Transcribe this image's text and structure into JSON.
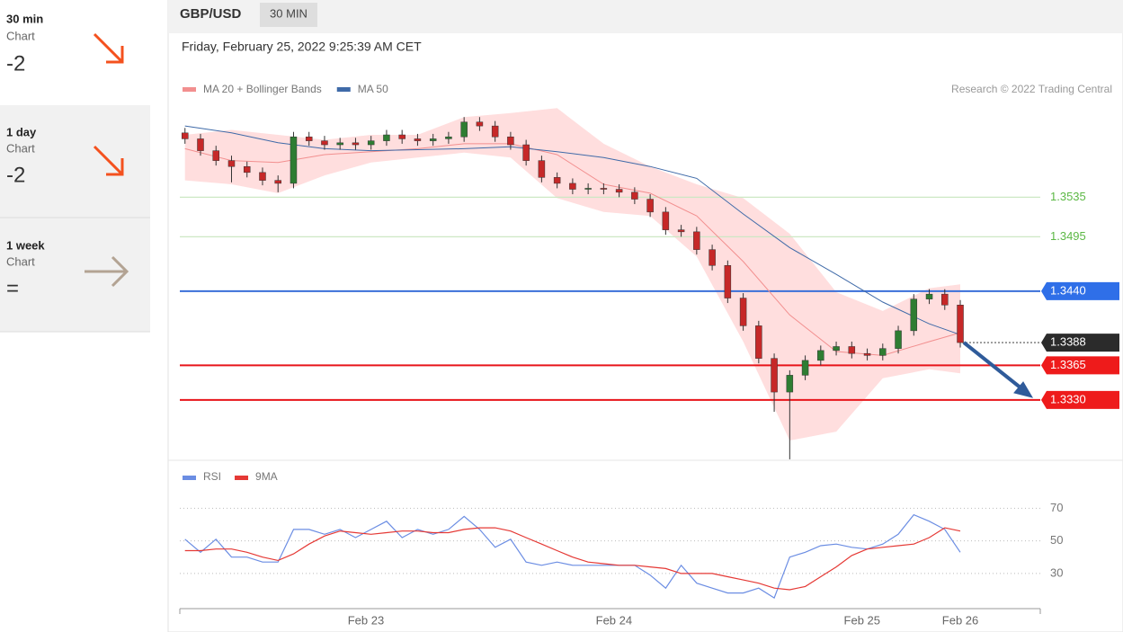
{
  "header": {
    "symbol": "GBP/USD",
    "timeframe": "30 MIN",
    "timestamp": "Friday, February 25, 2022 9:25:39 AM CET"
  },
  "sidebar": [
    {
      "period": "30 min",
      "label": "Chart",
      "score": "-2"
    },
    {
      "period": "1 day",
      "label": "Chart",
      "score": "-2"
    },
    {
      "period": "1 week",
      "label": "Chart",
      "score": "="
    }
  ],
  "chart_data": [
    {
      "type": "candlestick",
      "credit": "Research © 2022 Trading Central",
      "xlim": [
        -18,
        65.5
      ],
      "ylim": [
        1.3269,
        1.3698
      ],
      "up_color": "#2e7d32",
      "down_color": "#c62828",
      "x": [
        -17.5,
        -16,
        -14.5,
        -13,
        -11.5,
        -10,
        -8.5,
        -7,
        -5.5,
        -4,
        -2.5,
        -1,
        0.5,
        2,
        3.5,
        5,
        6.5,
        8,
        9.5,
        11,
        12.5,
        14,
        15.5,
        17,
        18.5,
        20,
        21.5,
        23,
        24.5,
        26,
        27.5,
        29,
        30.5,
        32,
        33.5,
        35,
        36.5,
        38,
        39.5,
        41,
        42.5,
        44,
        45.5,
        47,
        48.5,
        50,
        51.5,
        53,
        54.5,
        56,
        57.5
      ],
      "open": [
        1.36,
        1.3594,
        1.3582,
        1.3572,
        1.3566,
        1.356,
        1.3552,
        1.3549,
        1.3596,
        1.3592,
        1.3588,
        1.359,
        1.3588,
        1.3592,
        1.3598,
        1.3594,
        1.3592,
        1.3594,
        1.3596,
        1.3611,
        1.3607,
        1.3596,
        1.3588,
        1.3572,
        1.3555,
        1.3549,
        1.3543,
        1.3544,
        1.3543,
        1.354,
        1.3533,
        1.352,
        1.3502,
        1.35,
        1.3482,
        1.3466,
        1.3433,
        1.3405,
        1.3372,
        1.3338,
        1.3355,
        1.337,
        1.338,
        1.3384,
        1.3377,
        1.3375,
        1.3382,
        1.34,
        1.3432,
        1.3437,
        1.3426
      ],
      "high": [
        1.3605,
        1.3599,
        1.3587,
        1.3577,
        1.3571,
        1.3565,
        1.3557,
        1.3601,
        1.3601,
        1.3597,
        1.3595,
        1.3595,
        1.3597,
        1.3603,
        1.3603,
        1.3599,
        1.3599,
        1.3601,
        1.3616,
        1.3616,
        1.3612,
        1.3601,
        1.3593,
        1.3577,
        1.356,
        1.3554,
        1.3549,
        1.3549,
        1.3548,
        1.3545,
        1.3538,
        1.3525,
        1.3507,
        1.3505,
        1.3487,
        1.3471,
        1.3438,
        1.341,
        1.3377,
        1.336,
        1.3375,
        1.3385,
        1.3389,
        1.3389,
        1.3382,
        1.3387,
        1.3405,
        1.3437,
        1.3442,
        1.3442,
        1.3431
      ],
      "low": [
        1.3589,
        1.3577,
        1.3567,
        1.355,
        1.3555,
        1.3547,
        1.354,
        1.3544,
        1.3587,
        1.3583,
        1.3583,
        1.3583,
        1.3583,
        1.3587,
        1.3589,
        1.3587,
        1.3587,
        1.3589,
        1.3591,
        1.3602,
        1.3591,
        1.3583,
        1.3567,
        1.355,
        1.3544,
        1.3538,
        1.3538,
        1.3538,
        1.3535,
        1.3528,
        1.3515,
        1.3497,
        1.3495,
        1.3477,
        1.3461,
        1.3428,
        1.34,
        1.3367,
        1.3318,
        1.327,
        1.335,
        1.3365,
        1.3375,
        1.3372,
        1.337,
        1.337,
        1.3377,
        1.3395,
        1.3427,
        1.3421,
        1.3383
      ],
      "close": [
        1.3594,
        1.3582,
        1.3572,
        1.3566,
        1.356,
        1.3552,
        1.3549,
        1.3596,
        1.3592,
        1.3588,
        1.359,
        1.3588,
        1.3592,
        1.3598,
        1.3594,
        1.3592,
        1.3594,
        1.3596,
        1.3611,
        1.3607,
        1.3596,
        1.3588,
        1.3572,
        1.3555,
        1.3549,
        1.3543,
        1.3544,
        1.3543,
        1.354,
        1.3533,
        1.352,
        1.3502,
        1.35,
        1.3482,
        1.3466,
        1.3433,
        1.3405,
        1.3372,
        1.3338,
        1.3355,
        1.337,
        1.338,
        1.3384,
        1.3377,
        1.3375,
        1.3382,
        1.34,
        1.3432,
        1.3437,
        1.3426,
        1.3388
      ],
      "overlays": {
        "x": [
          -17.5,
          -13,
          -8.5,
          -4,
          0.5,
          5,
          9.5,
          14,
          18.5,
          23,
          27.5,
          32,
          36.5,
          41,
          45.5,
          50,
          54.5,
          57.5
        ],
        "series": [
          {
            "name": "MA 20 + Bollinger Bands",
            "color": "#f28f8f",
            "band_color": "#ffd0d0",
            "values": [
              1.3584,
              1.3572,
              1.357,
              1.3578,
              1.3581,
              1.3584,
              1.3589,
              1.3589,
              1.3578,
              1.3548,
              1.3539,
              1.3516,
              1.347,
              1.3416,
              1.3379,
              1.3375,
              1.3389,
              1.3398
            ],
            "upper": [
              1.3598,
              1.3603,
              1.3598,
              1.3593,
              1.3598,
              1.3598,
              1.3616,
              1.362,
              1.3625,
              1.3589,
              1.3566,
              1.3548,
              1.3534,
              1.3498,
              1.3439,
              1.342,
              1.3443,
              1.3447
            ],
            "lower": [
              1.3552,
              1.3548,
              1.3539,
              1.3557,
              1.357,
              1.3575,
              1.358,
              1.3575,
              1.3534,
              1.352,
              1.3516,
              1.3475,
              1.3389,
              1.3289,
              1.3298,
              1.3352,
              1.3361,
              1.3357
            ]
          },
          {
            "name": "MA 50",
            "color": "#3f6aa8",
            "values": [
              1.3607,
              1.36,
              1.359,
              1.3584,
              1.3582,
              1.3583,
              1.3584,
              1.3586,
              1.3581,
              1.3575,
              1.3566,
              1.3554,
              1.3518,
              1.3484,
              1.3457,
              1.3429,
              1.3407,
              1.3396
            ]
          }
        ]
      },
      "levels": [
        {
          "value": 1.3535,
          "label": "1.3535",
          "color": "#5cb845",
          "line_color": "#cde8c4",
          "box": false,
          "dotted": false
        },
        {
          "value": 1.3495,
          "label": "1.3495",
          "color": "#5cb845",
          "line_color": "#cde8c4",
          "box": false,
          "dotted": false
        },
        {
          "value": 1.344,
          "label": "1.3440",
          "color": "#2f6fe8",
          "line_color": "#3a6fd8",
          "box": true,
          "dotted": false
        },
        {
          "value": 1.3388,
          "label": "1.3388",
          "color": "#2b2b2b",
          "line_color": "#555555",
          "box": true,
          "dotted": true
        },
        {
          "value": 1.3365,
          "label": "1.3365",
          "color": "#ee1b1b",
          "line_color": "#e8141a",
          "box": true,
          "dotted": false
        },
        {
          "value": 1.333,
          "label": "1.3330",
          "color": "#ee1b1b",
          "line_color": "#e8141a",
          "box": true,
          "dotted": false
        }
      ]
    },
    {
      "type": "line",
      "xlim": [
        -18,
        65.5
      ],
      "ylim": [
        4,
        95
      ],
      "xticks": [
        {
          "value": 0,
          "label": "Feb 23"
        },
        {
          "value": 24,
          "label": "Feb 24"
        },
        {
          "value": 48,
          "label": "Feb 25"
        },
        {
          "value": 57.5,
          "label": "Feb 26"
        }
      ],
      "yticks": [
        30,
        50,
        70
      ],
      "x": [
        -17.5,
        -16,
        -14.5,
        -13,
        -11.5,
        -10,
        -8.5,
        -7,
        -5.5,
        -4,
        -2.5,
        -1,
        0.5,
        2,
        3.5,
        5,
        6.5,
        8,
        9.5,
        11,
        12.5,
        14,
        15.5,
        17,
        18.5,
        20,
        21.5,
        23,
        24.5,
        26,
        27.5,
        29,
        30.5,
        32,
        33.5,
        35,
        36.5,
        38,
        39.5,
        41,
        42.5,
        44,
        45.5,
        47,
        48.5,
        50,
        51.5,
        53,
        54.5,
        56,
        57.5
      ],
      "series": [
        {
          "name": "RSI",
          "color": "#6b8de3",
          "values": [
            51,
            43,
            51,
            40,
            40,
            37,
            37,
            57,
            57,
            54,
            57,
            52,
            57,
            62,
            52,
            57,
            54,
            57,
            65,
            57,
            46,
            51,
            37,
            35,
            37,
            35,
            35,
            35,
            35,
            35,
            29,
            21,
            35,
            24,
            21,
            18,
            18,
            21,
            15,
            40,
            43,
            47,
            48,
            46,
            45,
            48,
            54,
            66,
            62,
            57,
            43
          ]
        },
        {
          "name": "9MA",
          "color": "#e53935",
          "values": [
            44,
            44,
            45,
            45,
            43,
            40,
            38,
            42,
            48,
            53,
            56,
            55,
            54,
            55,
            56,
            56,
            55,
            55,
            57,
            58,
            58,
            56,
            52,
            48,
            44,
            40,
            37,
            36,
            35,
            35,
            34,
            33,
            30,
            30,
            30,
            28,
            26,
            24,
            21,
            20,
            22,
            28,
            34,
            41,
            45,
            46,
            47,
            48,
            52,
            58,
            56
          ]
        }
      ]
    }
  ]
}
